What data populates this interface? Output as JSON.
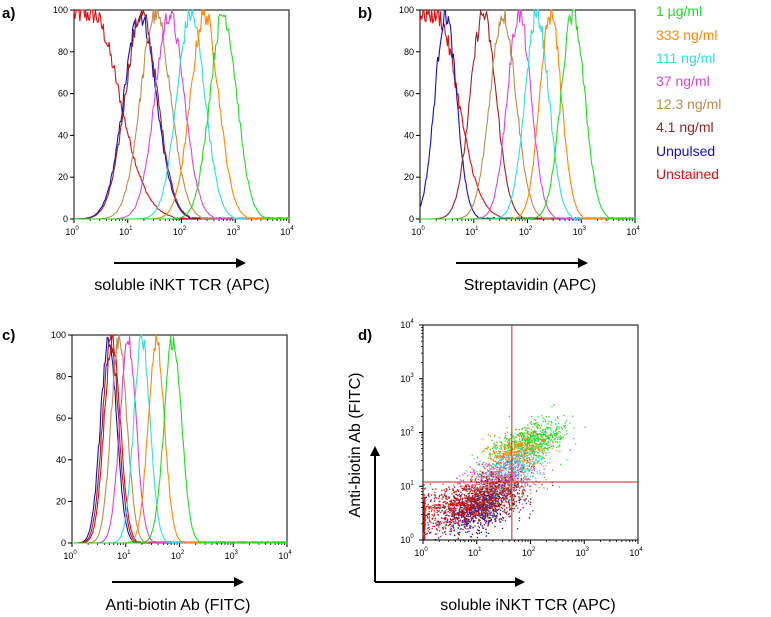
{
  "colors": {
    "1 µg/ml": "#22dd22",
    "333 ng/ml": "#ff8800",
    "111 ng/ml": "#33dddd",
    "37 ng/ml": "#dd44dd",
    "12.3 ng/ml": "#c08a4a",
    "4.1 ng/ml": "#992222",
    "Unpulsed": "#1010bb",
    "Unstained": "#dd1111"
  },
  "legend": [
    "1 µg/ml",
    "333 ng/ml",
    "111 ng/ml",
    "37 ng/ml",
    "12.3 ng/ml",
    "4.1 ng/ml",
    "Unpulsed",
    "Unstained"
  ],
  "chart_data": [
    {
      "panel": "a)",
      "type": "line",
      "xlabel": "soluble iNKT TCR (APC)",
      "xlim": [
        1,
        10000
      ],
      "xscale": "log",
      "ylim": [
        0,
        100
      ],
      "yticks": [
        0,
        20,
        40,
        60,
        80,
        100
      ],
      "series": [
        {
          "name": "Unstained",
          "peak": 2.2,
          "width": 0.5,
          "plateau": true
        },
        {
          "name": "Unpulsed",
          "peak": 17,
          "width": 0.3
        },
        {
          "name": "4.1 ng/ml",
          "peak": 18,
          "width": 0.3
        },
        {
          "name": "12.3 ng/ml",
          "peak": 33,
          "width": 0.28
        },
        {
          "name": "37 ng/ml",
          "peak": 60,
          "width": 0.27
        },
        {
          "name": "111 ng/ml",
          "peak": 150,
          "width": 0.26
        },
        {
          "name": "333 ng/ml",
          "peak": 270,
          "width": 0.26
        },
        {
          "name": "1 µg/ml",
          "peak": 600,
          "width": 0.25
        }
      ]
    },
    {
      "panel": "b)",
      "type": "line",
      "xlabel": "Streptavidin (APC)",
      "xlim": [
        1,
        10000
      ],
      "xscale": "log",
      "ylim": [
        0,
        100
      ],
      "yticks": [
        0,
        20,
        40,
        60,
        80,
        100
      ],
      "series": [
        {
          "name": "Unstained",
          "peak": 2.0,
          "width": 0.4,
          "plateau": true
        },
        {
          "name": "Unpulsed",
          "peak": 3,
          "width": 0.2
        },
        {
          "name": "4.1 ng/ml",
          "peak": 15,
          "width": 0.24
        },
        {
          "name": "12.3 ng/ml",
          "peak": 35,
          "width": 0.24
        },
        {
          "name": "37 ng/ml",
          "peak": 70,
          "width": 0.22
        },
        {
          "name": "111 ng/ml",
          "peak": 150,
          "width": 0.22
        },
        {
          "name": "333 ng/ml",
          "peak": 270,
          "width": 0.2
        },
        {
          "name": "1 µg/ml",
          "peak": 700,
          "width": 0.22
        }
      ]
    },
    {
      "panel": "c)",
      "type": "line",
      "xlabel": "Anti-biotin Ab (FITC)",
      "xlim": [
        1,
        10000
      ],
      "xscale": "log",
      "ylim": [
        0,
        100
      ],
      "yticks": [
        0,
        20,
        40,
        60,
        80,
        100
      ],
      "series": [
        {
          "name": "Unpulsed",
          "peak": 4.8,
          "width": 0.15
        },
        {
          "name": "4.1 ng/ml",
          "peak": 5.2,
          "width": 0.15
        },
        {
          "name": "Unstained",
          "peak": 5.6,
          "width": 0.15
        },
        {
          "name": "12.3 ng/ml",
          "peak": 7.5,
          "width": 0.15
        },
        {
          "name": "37 ng/ml",
          "peak": 11,
          "width": 0.15
        },
        {
          "name": "111 ng/ml",
          "peak": 20,
          "width": 0.15
        },
        {
          "name": "333 ng/ml",
          "peak": 37,
          "width": 0.15
        },
        {
          "name": "1 µg/ml",
          "peak": 75,
          "width": 0.16
        }
      ]
    },
    {
      "panel": "d)",
      "type": "scatter",
      "xlabel": "soluble iNKT TCR (APC)",
      "ylabel": "Anti-biotin Ab (FITC)",
      "xlim": [
        1,
        10000
      ],
      "ylim": [
        1,
        10000
      ],
      "xscale": "log",
      "yscale": "log",
      "quadrant_lines": {
        "x": 45,
        "y": 12
      },
      "clusters": [
        {
          "name": "Unstained",
          "cx": 3,
          "cy": 4,
          "sx": 0.55,
          "sy": 0.2,
          "n": 700
        },
        {
          "name": "Unpulsed",
          "cx": 10,
          "cy": 3.5,
          "sx": 0.35,
          "sy": 0.2,
          "n": 500
        },
        {
          "name": "4.1 ng/ml",
          "cx": 14,
          "cy": 5,
          "sx": 0.35,
          "sy": 0.2,
          "n": 700
        },
        {
          "name": "12.3 ng/ml",
          "cx": 20,
          "cy": 9,
          "sx": 0.35,
          "sy": 0.18,
          "n": 400
        },
        {
          "name": "37 ng/ml",
          "cx": 30,
          "cy": 14,
          "sx": 0.33,
          "sy": 0.18,
          "n": 400
        },
        {
          "name": "111 ng/ml",
          "cx": 40,
          "cy": 22,
          "sx": 0.32,
          "sy": 0.18,
          "n": 400
        },
        {
          "name": "333 ng/ml",
          "cx": 50,
          "cy": 40,
          "sx": 0.3,
          "sy": 0.18,
          "n": 400
        },
        {
          "name": "1 µg/ml",
          "cx": 100,
          "cy": 70,
          "sx": 0.32,
          "sy": 0.17,
          "n": 600
        }
      ]
    }
  ]
}
